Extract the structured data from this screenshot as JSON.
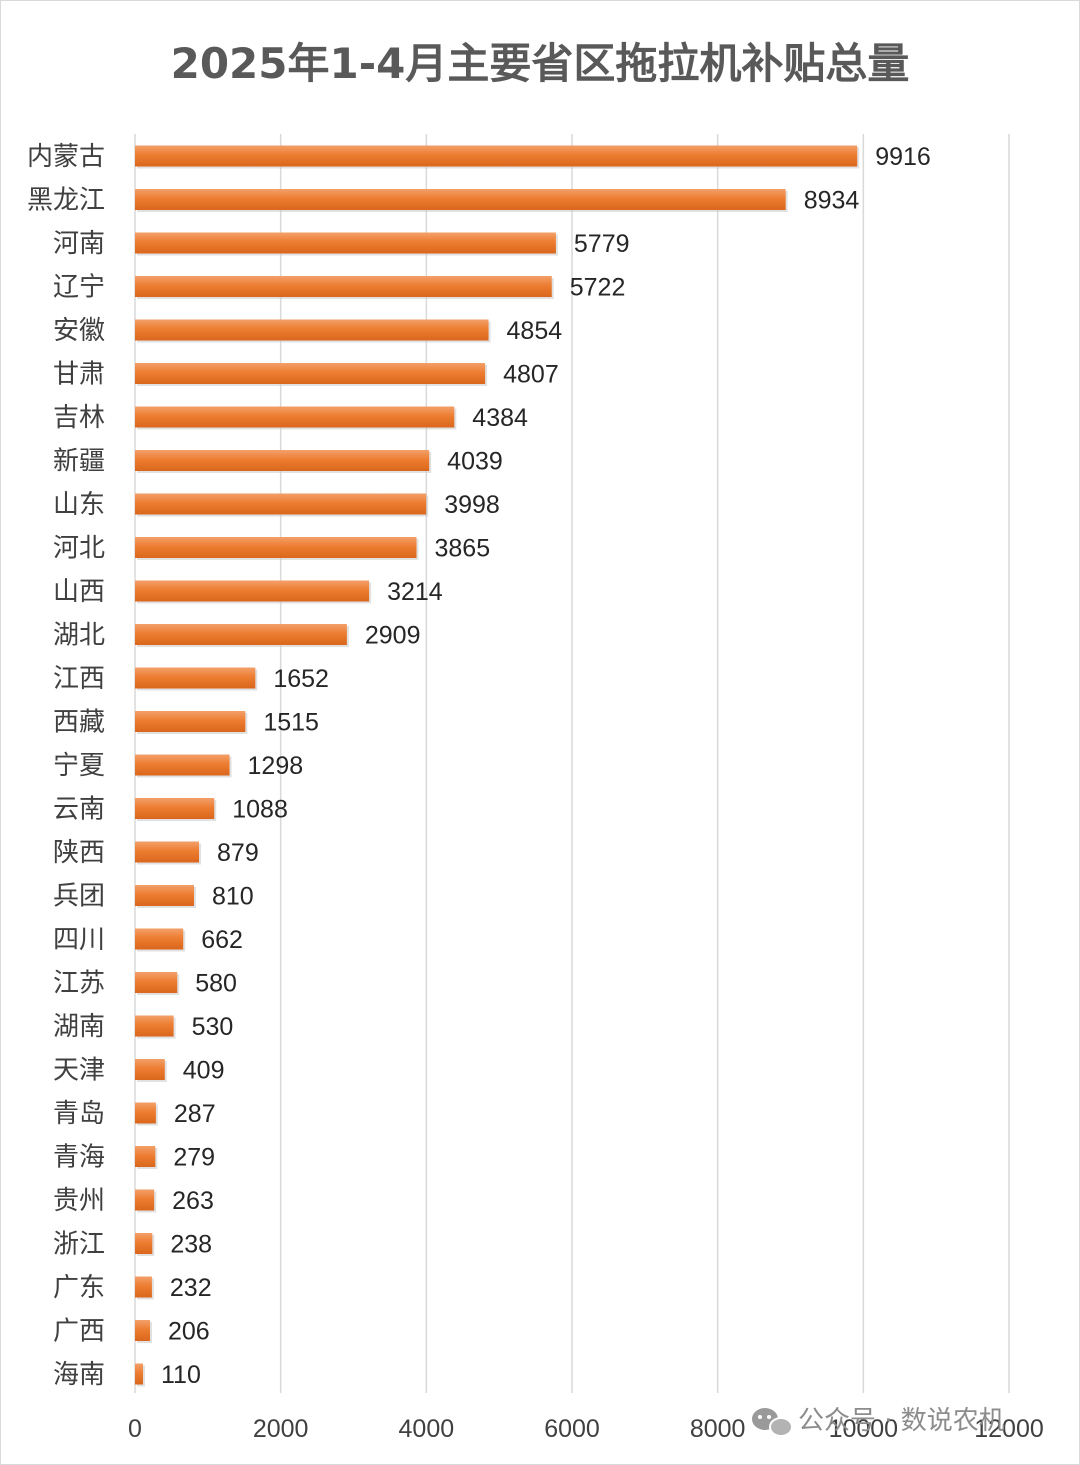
{
  "chart_data": {
    "type": "bar",
    "orientation": "horizontal",
    "title": "2025年1-4月主要省区拖拉机补贴总量",
    "categories": [
      "内蒙古",
      "黑龙江",
      "河南",
      "辽宁",
      "安徽",
      "甘肃",
      "吉林",
      "新疆",
      "山东",
      "河北",
      "山西",
      "湖北",
      "江西",
      "西藏",
      "宁夏",
      "云南",
      "陕西",
      "兵团",
      "四川",
      "江苏",
      "湖南",
      "天津",
      "青岛",
      "青海",
      "贵州",
      "浙江",
      "广东",
      "广西",
      "海南"
    ],
    "values": [
      9916,
      8934,
      5779,
      5722,
      4854,
      4807,
      4384,
      4039,
      3998,
      3865,
      3214,
      2909,
      1652,
      1515,
      1298,
      1088,
      879,
      810,
      662,
      580,
      530,
      409,
      287,
      279,
      263,
      238,
      232,
      206,
      110
    ],
    "xlim": [
      0,
      12000
    ],
    "xticks": [
      0,
      2000,
      4000,
      6000,
      8000,
      10000,
      12000
    ],
    "grid": true,
    "bar_color": "#ED7D31",
    "data_labels": true
  },
  "watermark": {
    "text": "公众号 · 数说农机",
    "icon": "wechat-icon"
  }
}
